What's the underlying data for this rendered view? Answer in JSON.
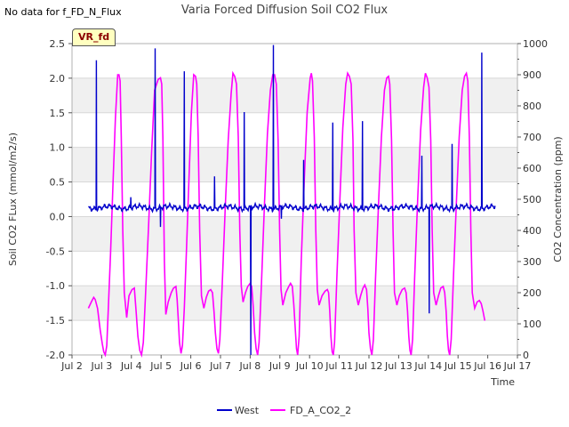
{
  "note": "No data for f_FD_N_Flux",
  "badge": "VR_fd",
  "chart_data": {
    "type": "line",
    "title": "Varia Forced Diffusion Soil CO2 Flux",
    "xlabel": "Time",
    "ylabel": "Soil CO2 FLux (mmol/m2/s)",
    "y2label": "CO2 Concentration (ppm)",
    "x_ticks": [
      "Jul 2",
      "Jul 3",
      "Jul 4",
      "Jul 5",
      "Jul 6",
      "Jul 7",
      "Jul 8",
      "Jul 9",
      "Jul 10",
      "Jul 11",
      "Jul 12",
      "Jul 13",
      "Jul 14",
      "Jul 15",
      "Jul 16",
      "Jul 17"
    ],
    "y_ticks": [
      "2.5",
      "2.0",
      "1.5",
      "1.0",
      "0.5",
      "0.0",
      "-0.5",
      "-1.0",
      "-1.5",
      "-2.0"
    ],
    "y2_ticks": [
      "1000",
      "900",
      "800",
      "700",
      "600",
      "500",
      "400",
      "300",
      "200",
      "100",
      "0"
    ],
    "xlim": [
      2,
      17
    ],
    "ylim": [
      -2.0,
      2.5
    ],
    "y2lim": [
      0,
      1000
    ],
    "grid": true,
    "legend": "bottom",
    "series": [
      {
        "name": "West",
        "axis": "left",
        "color": "#0000cc",
        "baseline": 0.13,
        "baseline_start": 2.55,
        "baseline_end": 16.25,
        "spikes": [
          {
            "x": 2.82,
            "y": 2.26
          },
          {
            "x": 3.98,
            "y": 0.28
          },
          {
            "x": 4.8,
            "y": 2.43
          },
          {
            "x": 4.98,
            "y": -0.15
          },
          {
            "x": 5.78,
            "y": 2.1
          },
          {
            "x": 6.8,
            "y": 0.58
          },
          {
            "x": 7.8,
            "y": 1.51
          },
          {
            "x": 8.02,
            "y": -2.0
          },
          {
            "x": 8.78,
            "y": 2.48
          },
          {
            "x": 9.05,
            "y": -0.03
          },
          {
            "x": 9.8,
            "y": 0.82
          },
          {
            "x": 10.78,
            "y": 1.36
          },
          {
            "x": 11.78,
            "y": 1.38
          },
          {
            "x": 12.78,
            "y": 0.15
          },
          {
            "x": 13.78,
            "y": 0.88
          },
          {
            "x": 14.03,
            "y": -1.4
          },
          {
            "x": 14.8,
            "y": 1.05
          },
          {
            "x": 15.8,
            "y": 2.37
          }
        ]
      },
      {
        "name": "FD_A_CO2_2",
        "axis": "right",
        "color": "#ff00ff",
        "points": [
          [
            2.55,
            150
          ],
          [
            2.65,
            170
          ],
          [
            2.73,
            185
          ],
          [
            2.78,
            178
          ],
          [
            2.86,
            150
          ],
          [
            2.95,
            80
          ],
          [
            3.02,
            35
          ],
          [
            3.07,
            10
          ],
          [
            3.12,
            0
          ],
          [
            3.17,
            30
          ],
          [
            3.22,
            140
          ],
          [
            3.3,
            330
          ],
          [
            3.38,
            550
          ],
          [
            3.46,
            760
          ],
          [
            3.54,
            900
          ],
          [
            3.58,
            900
          ],
          [
            3.62,
            880
          ],
          [
            3.66,
            700
          ],
          [
            3.71,
            400
          ],
          [
            3.76,
            200
          ],
          [
            3.84,
            120
          ],
          [
            3.92,
            190
          ],
          [
            4.02,
            210
          ],
          [
            4.1,
            215
          ],
          [
            4.16,
            140
          ],
          [
            4.22,
            60
          ],
          [
            4.28,
            15
          ],
          [
            4.34,
            0
          ],
          [
            4.4,
            40
          ],
          [
            4.48,
            200
          ],
          [
            4.58,
            420
          ],
          [
            4.68,
            650
          ],
          [
            4.78,
            850
          ],
          [
            4.9,
            885
          ],
          [
            4.98,
            890
          ],
          [
            5.02,
            870
          ],
          [
            5.06,
            700
          ],
          [
            5.11,
            300
          ],
          [
            5.16,
            130
          ],
          [
            5.24,
            170
          ],
          [
            5.34,
            200
          ],
          [
            5.42,
            215
          ],
          [
            5.5,
            220
          ],
          [
            5.54,
            180
          ],
          [
            5.58,
            110
          ],
          [
            5.62,
            40
          ],
          [
            5.67,
            5
          ],
          [
            5.72,
            30
          ],
          [
            5.78,
            150
          ],
          [
            5.86,
            350
          ],
          [
            5.94,
            570
          ],
          [
            6.02,
            780
          ],
          [
            6.1,
            900
          ],
          [
            6.16,
            895
          ],
          [
            6.2,
            870
          ],
          [
            6.25,
            700
          ],
          [
            6.3,
            400
          ],
          [
            6.36,
            190
          ],
          [
            6.44,
            150
          ],
          [
            6.52,
            185
          ],
          [
            6.6,
            205
          ],
          [
            6.67,
            210
          ],
          [
            6.73,
            200
          ],
          [
            6.78,
            140
          ],
          [
            6.83,
            70
          ],
          [
            6.88,
            20
          ],
          [
            6.93,
            5
          ],
          [
            6.98,
            50
          ],
          [
            7.06,
            230
          ],
          [
            7.16,
            470
          ],
          [
            7.26,
            690
          ],
          [
            7.36,
            840
          ],
          [
            7.42,
            905
          ],
          [
            7.48,
            895
          ],
          [
            7.54,
            870
          ],
          [
            7.6,
            700
          ],
          [
            7.65,
            400
          ],
          [
            7.7,
            220
          ],
          [
            7.76,
            170
          ],
          [
            7.84,
            200
          ],
          [
            7.92,
            220
          ],
          [
            8.0,
            230
          ],
          [
            8.05,
            220
          ],
          [
            8.1,
            160
          ],
          [
            8.15,
            70
          ],
          [
            8.2,
            20
          ],
          [
            8.25,
            0
          ],
          [
            8.3,
            40
          ],
          [
            8.38,
            230
          ],
          [
            8.48,
            480
          ],
          [
            8.58,
            710
          ],
          [
            8.68,
            850
          ],
          [
            8.76,
            900
          ],
          [
            8.82,
            900
          ],
          [
            8.88,
            870
          ],
          [
            8.94,
            690
          ],
          [
            8.99,
            400
          ],
          [
            9.04,
            210
          ],
          [
            9.1,
            160
          ],
          [
            9.2,
            200
          ],
          [
            9.3,
            220
          ],
          [
            9.36,
            230
          ],
          [
            9.42,
            220
          ],
          [
            9.47,
            160
          ],
          [
            9.52,
            80
          ],
          [
            9.56,
            20
          ],
          [
            9.6,
            0
          ],
          [
            9.65,
            60
          ],
          [
            9.72,
            300
          ],
          [
            9.82,
            560
          ],
          [
            9.92,
            780
          ],
          [
            10.02,
            890
          ],
          [
            10.06,
            905
          ],
          [
            10.1,
            880
          ],
          [
            10.16,
            700
          ],
          [
            10.21,
            400
          ],
          [
            10.26,
            210
          ],
          [
            10.32,
            160
          ],
          [
            10.42,
            190
          ],
          [
            10.52,
            205
          ],
          [
            10.6,
            210
          ],
          [
            10.64,
            200
          ],
          [
            10.68,
            140
          ],
          [
            10.72,
            60
          ],
          [
            10.76,
            10
          ],
          [
            10.8,
            0
          ],
          [
            10.84,
            40
          ],
          [
            10.92,
            250
          ],
          [
            11.02,
            500
          ],
          [
            11.12,
            730
          ],
          [
            11.22,
            870
          ],
          [
            11.28,
            905
          ],
          [
            11.34,
            895
          ],
          [
            11.4,
            870
          ],
          [
            11.46,
            690
          ],
          [
            11.5,
            400
          ],
          [
            11.56,
            200
          ],
          [
            11.64,
            160
          ],
          [
            11.72,
            190
          ],
          [
            11.8,
            215
          ],
          [
            11.86,
            225
          ],
          [
            11.92,
            210
          ],
          [
            11.96,
            150
          ],
          [
            12.0,
            70
          ],
          [
            12.05,
            20
          ],
          [
            12.1,
            0
          ],
          [
            12.15,
            50
          ],
          [
            12.22,
            240
          ],
          [
            12.32,
            480
          ],
          [
            12.42,
            700
          ],
          [
            12.52,
            850
          ],
          [
            12.6,
            890
          ],
          [
            12.66,
            895
          ],
          [
            12.7,
            870
          ],
          [
            12.76,
            690
          ],
          [
            12.81,
            400
          ],
          [
            12.86,
            200
          ],
          [
            12.94,
            160
          ],
          [
            13.02,
            190
          ],
          [
            13.12,
            210
          ],
          [
            13.2,
            215
          ],
          [
            13.25,
            200
          ],
          [
            13.3,
            140
          ],
          [
            13.34,
            60
          ],
          [
            13.38,
            15
          ],
          [
            13.42,
            0
          ],
          [
            13.47,
            50
          ],
          [
            13.54,
            250
          ],
          [
            13.64,
            500
          ],
          [
            13.74,
            720
          ],
          [
            13.84,
            860
          ],
          [
            13.9,
            905
          ],
          [
            13.96,
            890
          ],
          [
            14.02,
            860
          ],
          [
            14.08,
            690
          ],
          [
            14.13,
            400
          ],
          [
            14.18,
            200
          ],
          [
            14.26,
            160
          ],
          [
            14.34,
            190
          ],
          [
            14.42,
            215
          ],
          [
            14.5,
            220
          ],
          [
            14.55,
            200
          ],
          [
            14.6,
            140
          ],
          [
            14.64,
            60
          ],
          [
            14.68,
            15
          ],
          [
            14.72,
            0
          ],
          [
            14.77,
            50
          ],
          [
            14.84,
            240
          ],
          [
            14.94,
            480
          ],
          [
            15.04,
            700
          ],
          [
            15.14,
            850
          ],
          [
            15.22,
            895
          ],
          [
            15.28,
            905
          ],
          [
            15.33,
            880
          ],
          [
            15.38,
            700
          ],
          [
            15.43,
            400
          ],
          [
            15.48,
            200
          ],
          [
            15.56,
            150
          ],
          [
            15.64,
            170
          ],
          [
            15.72,
            175
          ],
          [
            15.78,
            165
          ],
          [
            15.84,
            140
          ],
          [
            15.9,
            110
          ]
        ]
      }
    ]
  }
}
